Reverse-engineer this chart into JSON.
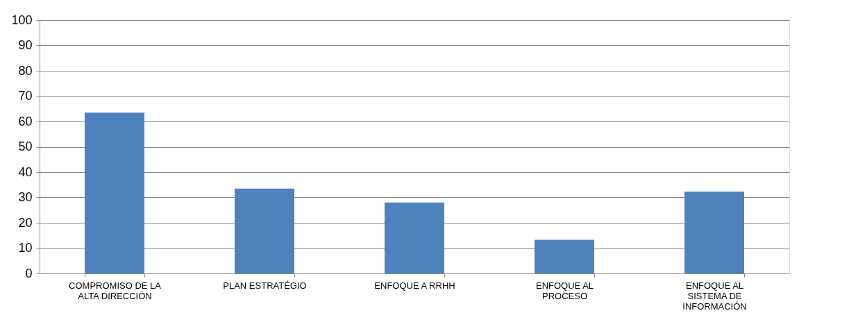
{
  "chart_data": {
    "type": "bar",
    "categories": [
      "COMPROMISO DE LA ALTA DIRECCIÓN",
      "PLAN ESTRATÉGIO",
      "ENFOQUE A RRHH",
      "ENFOQUE AL PROCESO",
      "ENFOQUE AL SISTEMA DE INFORMACIÓN"
    ],
    "values": [
      63.5,
      33.5,
      28,
      13.3,
      32.3
    ],
    "color": "#4f81bd",
    "ylim": [
      0,
      100
    ],
    "yticks": [
      0,
      10,
      20,
      30,
      40,
      50,
      60,
      70,
      80,
      90,
      100
    ],
    "grid": "y"
  }
}
